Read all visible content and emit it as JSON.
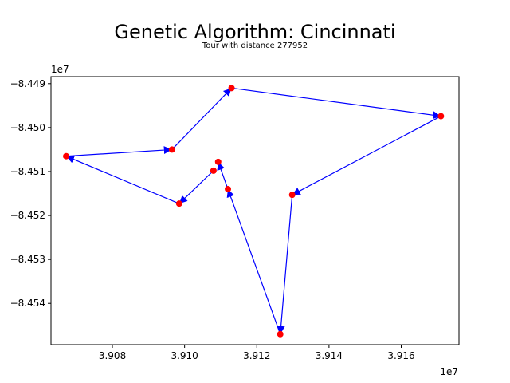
{
  "chart_data": {
    "type": "scatter",
    "title": "Genetic Algorithm: Cincinnati",
    "subtitle": "Tour with distance 277952",
    "xlabel": "",
    "ylabel": "",
    "x_offset_label": "1e7",
    "y_offset_label": "1e7",
    "xlim": [
      3.9063,
      3.9176
    ],
    "ylim": [
      -8.45494,
      -8.44884
    ],
    "x_ticks": [
      3.908,
      3.91,
      3.912,
      3.914,
      3.916
    ],
    "x_tick_labels": [
      "3.908",
      "3.910",
      "3.912",
      "3.914",
      "3.916"
    ],
    "y_ticks": [
      -8.449,
      -8.45,
      -8.451,
      -8.452,
      -8.453,
      -8.454
    ],
    "y_tick_labels": [
      "−8.449",
      "−8.450",
      "−8.451",
      "−8.452",
      "−8.453",
      "−8.454"
    ],
    "grid": false,
    "legend": "none",
    "point_color": "#ff0000",
    "path_color": "#0000ff",
    "points": [
      {
        "x": 3.90672,
        "y": -8.45065
      },
      {
        "x": 3.90965,
        "y": -8.4505
      },
      {
        "x": 3.9113,
        "y": -8.4491
      },
      {
        "x": 3.9171,
        "y": -8.44974
      },
      {
        "x": 3.91298,
        "y": -8.45153
      },
      {
        "x": 3.91265,
        "y": -8.4547
      },
      {
        "x": 3.9112,
        "y": -8.4514
      },
      {
        "x": 3.91093,
        "y": -8.45078
      },
      {
        "x": 3.9108,
        "y": -8.45098
      },
      {
        "x": 3.90985,
        "y": -8.45173
      }
    ],
    "tour": [
      [
        0,
        1
      ],
      [
        1,
        2
      ],
      [
        2,
        3
      ],
      [
        3,
        4
      ],
      [
        4,
        5
      ],
      [
        5,
        6
      ],
      [
        6,
        7
      ],
      [
        8,
        9
      ],
      [
        9,
        0
      ]
    ]
  }
}
